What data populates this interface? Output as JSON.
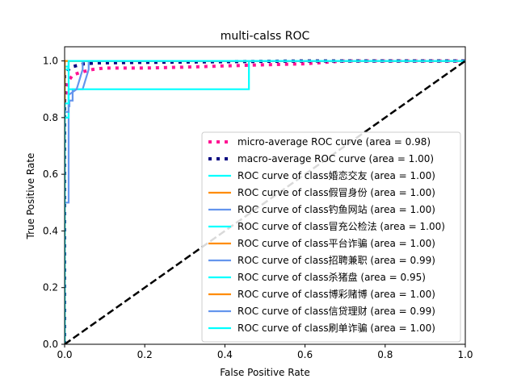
{
  "chart_data": {
    "type": "line",
    "title": "multi-calss ROC",
    "xlabel": "False Positive Rate",
    "ylabel": "True Positive Rate",
    "xlim": [
      0.0,
      1.0
    ],
    "ylim": [
      0.0,
      1.05
    ],
    "xticks": [
      "0.0",
      "0.2",
      "0.4",
      "0.6",
      "0.8",
      "1.0"
    ],
    "yticks": [
      "0.0",
      "0.2",
      "0.4",
      "0.6",
      "0.8",
      "1.0"
    ],
    "grid": false,
    "legend_position": "lower-right",
    "series": [
      {
        "name": "micro-average ROC curve (area = 0.98)",
        "color": "#ff1493",
        "style": "dotted-thick",
        "x": [
          0.0,
          0.0,
          0.005,
          0.01,
          0.02,
          0.04,
          0.07,
          0.1,
          0.2,
          0.3,
          0.46,
          0.6,
          0.7,
          1.0
        ],
        "y": [
          0.0,
          0.86,
          0.9,
          0.93,
          0.95,
          0.96,
          0.97,
          0.975,
          0.975,
          0.978,
          0.985,
          0.99,
          1.0,
          1.0
        ]
      },
      {
        "name": "macro-average ROC curve (area = 1.00)",
        "color": "#000080",
        "style": "dotted-thick",
        "x": [
          0.0,
          0.0,
          0.01,
          0.02,
          0.05,
          0.08,
          0.2,
          0.46,
          0.6,
          1.0
        ],
        "y": [
          0.0,
          0.95,
          0.97,
          0.98,
          0.99,
          0.993,
          0.995,
          0.998,
          1.0,
          1.0
        ]
      },
      {
        "name": "ROC curve of class婚恋交友 (area = 1.00)",
        "color": "#00ffff",
        "style": "solid",
        "x": [
          0.0,
          0.0,
          0.01,
          0.01,
          1.0
        ],
        "y": [
          0.0,
          0.98,
          0.98,
          1.0,
          1.0
        ]
      },
      {
        "name": "ROC curve of class假冒身份 (area = 1.00)",
        "color": "#ff8c00",
        "style": "solid",
        "x": [
          0.0,
          0.0,
          1.0
        ],
        "y": [
          0.0,
          1.0,
          1.0
        ]
      },
      {
        "name": "ROC curve of class钓鱼网站 (area = 1.00)",
        "color": "#6495ed",
        "style": "solid",
        "x": [
          0.0,
          0.0,
          1.0
        ],
        "y": [
          0.0,
          1.0,
          1.0
        ]
      },
      {
        "name": "ROC curve of class冒充公检法 (area = 1.00)",
        "color": "#00ffff",
        "style": "solid",
        "x": [
          0.0,
          0.0,
          0.01,
          0.01,
          1.0
        ],
        "y": [
          0.0,
          0.97,
          0.97,
          1.0,
          1.0
        ]
      },
      {
        "name": "ROC curve of class平台诈骗 (area = 1.00)",
        "color": "#ff8c00",
        "style": "solid",
        "x": [
          0.0,
          0.0,
          1.0
        ],
        "y": [
          0.0,
          1.0,
          1.0
        ]
      },
      {
        "name": "ROC curve of class招聘兼职 (area = 0.99)",
        "color": "#6495ed",
        "style": "solid",
        "x": [
          0.0,
          0.0,
          0.01,
          0.01,
          0.012,
          0.012,
          0.02,
          0.02,
          0.045,
          0.06,
          0.06,
          1.0
        ],
        "y": [
          0.0,
          0.5,
          0.5,
          0.84,
          0.84,
          0.86,
          0.86,
          0.9,
          0.9,
          0.97,
          1.0,
          1.0
        ]
      },
      {
        "name": "ROC curve of class杀猪盘 (area = 0.95)",
        "color": "#00ffff",
        "style": "solid",
        "x": [
          0.0,
          0.0,
          0.01,
          0.01,
          0.46,
          0.46,
          1.0
        ],
        "y": [
          0.0,
          0.8,
          0.8,
          0.9,
          0.9,
          1.0,
          1.0
        ]
      },
      {
        "name": "ROC curve of class博彩赌博 (area = 1.00)",
        "color": "#ff8c00",
        "style": "solid",
        "x": [
          0.0,
          0.0,
          1.0
        ],
        "y": [
          0.0,
          1.0,
          1.0
        ]
      },
      {
        "name": "ROC curve of class信贷理财 (area = 0.99)",
        "color": "#6495ed",
        "style": "solid",
        "x": [
          0.0,
          0.0,
          0.01,
          0.01,
          0.03,
          0.045,
          0.045,
          1.0
        ],
        "y": [
          0.0,
          0.82,
          0.82,
          0.88,
          0.9,
          0.97,
          1.0,
          1.0
        ]
      },
      {
        "name": "ROC curve of class刷单诈骗 (area = 1.00)",
        "color": "#00ffff",
        "style": "solid",
        "x": [
          0.0,
          0.0,
          0.01,
          0.01,
          1.0
        ],
        "y": [
          0.0,
          0.85,
          0.85,
          1.0,
          1.0
        ]
      }
    ],
    "reference_line": {
      "x": [
        0.0,
        1.0
      ],
      "y": [
        0.0,
        1.0
      ],
      "color": "#000000",
      "style": "dashed"
    }
  }
}
